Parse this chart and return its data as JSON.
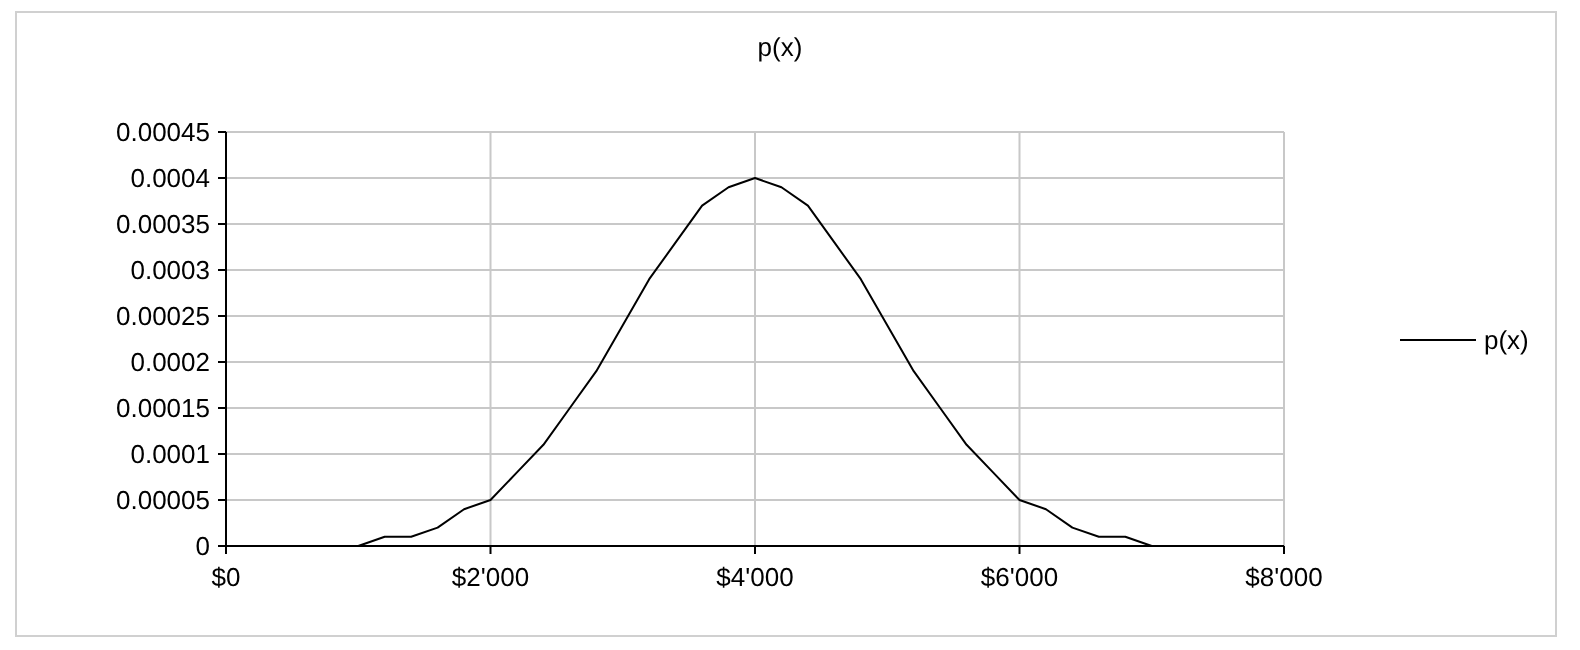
{
  "chart_data": {
    "type": "line",
    "title": "p(x)",
    "x": [
      600,
      800,
      1000,
      1200,
      1400,
      1600,
      1800,
      2000,
      2200,
      2400,
      2600,
      2800,
      3000,
      3200,
      3400,
      3600,
      3800,
      4000,
      4200,
      4400,
      4600,
      4800,
      5000,
      5200,
      5400,
      5600,
      5800,
      6000,
      6200,
      6400,
      6600,
      6800,
      7000,
      7200,
      7400
    ],
    "series": [
      {
        "name": "p(x)",
        "color": "#000000",
        "values": [
          0,
          0,
          0,
          1e-05,
          1e-05,
          2e-05,
          4e-05,
          5e-05,
          8e-05,
          0.00011,
          0.00015,
          0.00019,
          0.00024,
          0.00029,
          0.00033,
          0.00037,
          0.00039,
          0.0004,
          0.00039,
          0.00037,
          0.00033,
          0.00029,
          0.00024,
          0.00019,
          0.00015,
          0.00011,
          8e-05,
          5e-05,
          4e-05,
          2e-05,
          1e-05,
          1e-05,
          0,
          0,
          0
        ]
      }
    ],
    "xlim": [
      0,
      8000
    ],
    "xticks": [
      {
        "value": 0,
        "label": "$0"
      },
      {
        "value": 2000,
        "label": "$2'000"
      },
      {
        "value": 4000,
        "label": "$4'000"
      },
      {
        "value": 6000,
        "label": "$6'000"
      },
      {
        "value": 8000,
        "label": "$8'000"
      }
    ],
    "ylim": [
      0,
      0.00045
    ],
    "yticks": [
      0,
      {
        "value": 5e-05,
        "label": "0.00005"
      },
      0.0001,
      0.00015,
      0.0002,
      0.00025,
      0.0003,
      0.00035,
      0.0004,
      0.00045
    ],
    "grid": true,
    "legend": "right",
    "marker": "none",
    "line_style": "solid"
  }
}
